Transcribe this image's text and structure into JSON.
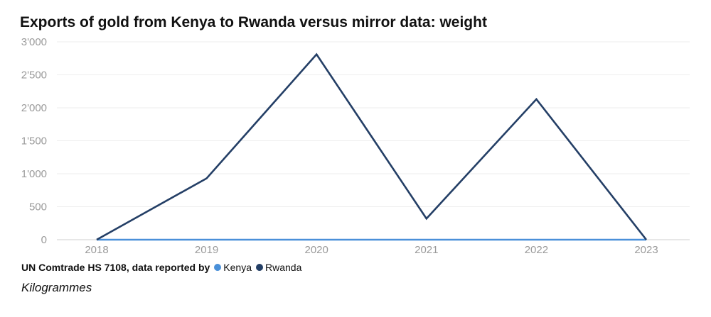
{
  "title": "Exports of gold from Kenya to Rwanda versus mirror data: weight",
  "legend": {
    "source_label": "UN Comtrade HS 7108, data reported by",
    "items": [
      {
        "name": "Kenya",
        "color": "#4a90d9"
      },
      {
        "name": "Rwanda",
        "color": "#243f66"
      }
    ]
  },
  "units_label": "Kilogrammes",
  "chart_data": {
    "type": "line",
    "title": "Exports of gold from Kenya to Rwanda versus mirror data: weight",
    "x": [
      "2018",
      "2019",
      "2020",
      "2021",
      "2022",
      "2023"
    ],
    "y_ticks": [
      "0",
      "500",
      "1'000",
      "1'500",
      "2'000",
      "2'500",
      "3'000"
    ],
    "ylim": [
      0,
      3000
    ],
    "grid": true,
    "legend_position": "bottom-left",
    "series": [
      {
        "name": "Kenya",
        "color": "#4a90d9",
        "values": [
          0,
          0,
          0,
          0,
          0,
          0
        ]
      },
      {
        "name": "Rwanda",
        "color": "#243f66",
        "values": [
          0,
          930,
          2810,
          320,
          2130,
          0
        ]
      }
    ]
  }
}
